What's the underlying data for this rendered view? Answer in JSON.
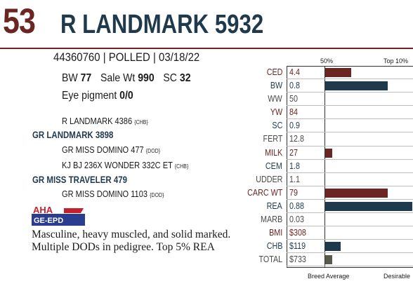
{
  "header": {
    "lot_number": "53",
    "name": "R LANDMARK 5932",
    "colors": {
      "accent": "#6b2522",
      "navy": "#1f3a4c"
    }
  },
  "registration": {
    "line": "44360760 | POLLED | 03/18/22"
  },
  "stats": {
    "bw_label": "BW",
    "bw_value": "77",
    "sale_wt_label": "Sale Wt",
    "sale_wt_value": "990",
    "sc_label": "SC",
    "sc_value": "32",
    "eye_label": "Eye pigment",
    "eye_value": "0/0"
  },
  "pedigree": [
    {
      "text": "R LANDMARK 4386",
      "tag": "{CHB}",
      "bold": false
    },
    {
      "text": "GR LANDMARK 3898",
      "tag": "",
      "bold": true
    },
    {
      "text": "GR MISS DOMINO 477",
      "tag": "{DOD}",
      "bold": false
    },
    {
      "text": "KJ BJ 236X WONDER 332C ET",
      "tag": "{CHB}",
      "bold": false
    },
    {
      "text": "GR MISS TRAVELER 479",
      "tag": "",
      "bold": true
    },
    {
      "text": "GR MISS DOMINO 1103",
      "tag": "{DOD}",
      "bold": false
    }
  ],
  "logo": {
    "top": "AHA",
    "bottom": "GE-EPD"
  },
  "comments": [
    "Masculine, heavy muscled, and solid marked.",
    "Multiple DODs in pedigree. Top 5% REA"
  ],
  "epd_chart": {
    "header_left": "50%",
    "header_right": "Top 10%",
    "footer_left": "Breed Average",
    "footer_right": "Desirable",
    "colors": {
      "emph_bar": "#6b2522",
      "info_bar": "#1f3a4c",
      "total_bar": "#5a5a4a"
    }
  },
  "chart_data": {
    "type": "bar",
    "categories": [
      "CED",
      "BW",
      "WW",
      "YW",
      "SC",
      "FERT",
      "MILK",
      "CEM",
      "UDDER",
      "CARC WT",
      "REA",
      "MARB",
      "BMI",
      "CHB",
      "TOTAL"
    ],
    "values": [
      "4.4",
      "0.8",
      "50",
      "84",
      "0.9",
      "12.8",
      "27",
      "1.8",
      "1.1",
      "79",
      "0.88",
      "0.03",
      "$308",
      "$119",
      "$733"
    ],
    "bar_fraction": [
      0.3,
      0.72,
      0,
      0,
      0,
      0,
      0.08,
      0,
      0,
      0.72,
      1.0,
      0,
      0,
      0.18,
      0.08
    ],
    "styles": [
      "emph",
      "info",
      "neutral",
      "emph",
      "info",
      "neutral",
      "emph",
      "info",
      "neutral",
      "emph",
      "info",
      "neutral",
      "emph",
      "info",
      "neutral"
    ],
    "title": "",
    "xlabel": "",
    "ylabel": ""
  }
}
